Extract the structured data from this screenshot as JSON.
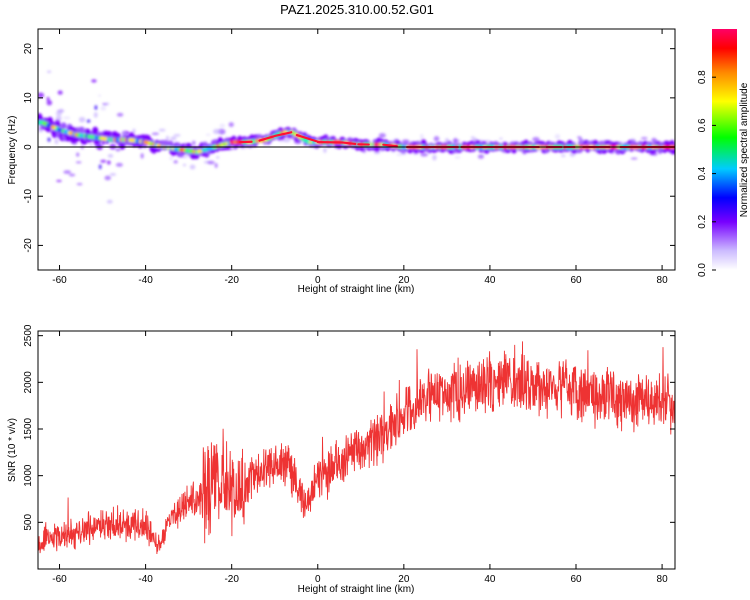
{
  "chart_data": [
    {
      "type": "heatmap",
      "title": "PAZ1.2025.310.00.52.G01",
      "xlabel": "Height of straight line (km)",
      "ylabel": "Frequency (Hz)",
      "xlim": [
        -65,
        83
      ],
      "ylim": [
        -25,
        24
      ],
      "xticks": [
        -60,
        -40,
        -20,
        0,
        20,
        40,
        60,
        80
      ],
      "yticks": [
        -20,
        -10,
        0,
        10,
        20
      ],
      "colorbar": {
        "label": "Normalized spectral amplitude",
        "range": [
          0,
          1
        ],
        "ticks": [
          0.0,
          0.2,
          0.4,
          0.6,
          0.8
        ]
      },
      "ridge": {
        "x": [
          -64,
          -60,
          -56,
          -52,
          -48,
          -44,
          -40,
          -36,
          -32,
          -28,
          -24,
          -20,
          -16,
          -12,
          -8,
          -6,
          -4,
          -2,
          0,
          5,
          10,
          15,
          20,
          25,
          30,
          40,
          50,
          60,
          70,
          83
        ],
        "y": [
          5,
          3.5,
          2.5,
          2,
          1.5,
          1.5,
          1,
          0,
          -0.5,
          -1,
          0,
          1,
          1,
          1.5,
          3,
          3,
          2,
          1,
          1,
          1,
          0.5,
          0.5,
          0,
          0,
          0,
          0,
          0,
          0,
          0,
          0
        ]
      }
    },
    {
      "type": "line",
      "xlabel": "Height of straight line (km)",
      "ylabel": "SNR (10 * v/v)",
      "xlim": [
        -65,
        83
      ],
      "ylim": [
        0,
        2550
      ],
      "xticks": [
        -60,
        -40,
        -20,
        0,
        20,
        40,
        60,
        80
      ],
      "yticks": [
        500,
        1000,
        1500,
        2000,
        2500
      ],
      "color": "#ee3333",
      "trend": {
        "x": [
          -65,
          -60,
          -55,
          -50,
          -45,
          -40,
          -37,
          -35,
          -30,
          -25,
          -22,
          -20,
          -17,
          -15,
          -10,
          -7,
          -5,
          -3,
          0,
          5,
          10,
          15,
          20,
          25,
          30,
          35,
          40,
          45,
          50,
          55,
          60,
          65,
          70,
          75,
          83
        ],
        "y": [
          250,
          350,
          400,
          450,
          500,
          450,
          250,
          500,
          700,
          900,
          1000,
          800,
          900,
          1000,
          1100,
          1100,
          950,
          700,
          950,
          1150,
          1300,
          1400,
          1650,
          1850,
          1900,
          1950,
          2000,
          2000,
          1950,
          1950,
          1900,
          1850,
          1800,
          1800,
          1750
        ]
      }
    }
  ]
}
